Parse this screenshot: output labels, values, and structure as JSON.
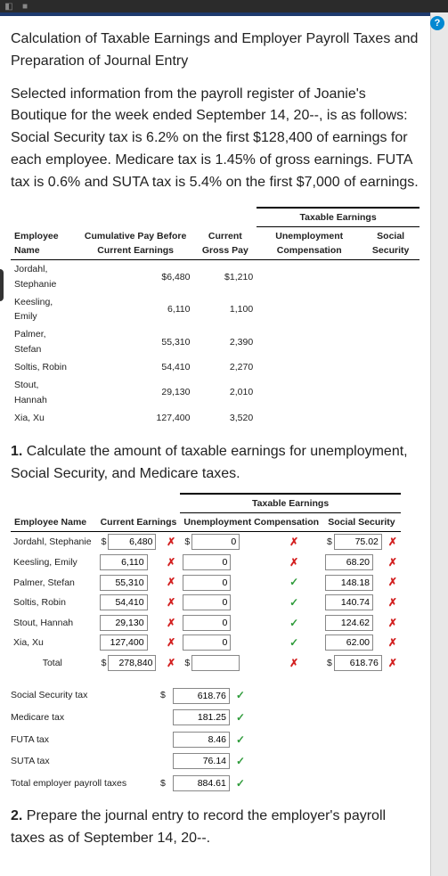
{
  "topbar": {
    "icon1_glyph": "◧",
    "icon2_glyph": "■"
  },
  "help_glyph": "?",
  "title": "Calculation of Taxable Earnings and Employer Payroll Taxes and Preparation of Journal Entry",
  "intro": "Selected information from the payroll register of Joanie's Boutique for the week ended September 14, 20--, is as follows: Social Security tax is 6.2% on the first $128,400 of earnings for each employee. Medicare tax is 1.45% of gross earnings. FUTA tax is 0.6% and SUTA tax is 5.4% on the first $7,000 of earnings.",
  "table1": {
    "group_header": "Taxable Earnings",
    "headers": {
      "name": "Employee Name",
      "cum": "Cumulative Pay Before Current Earnings",
      "gross": "Current Gross Pay",
      "unemp": "Unemployment Compensation",
      "ss": "Social Security"
    },
    "rows": [
      {
        "name": "Jordahl, Stephanie",
        "cum": "$6,480",
        "gross": "$1,210"
      },
      {
        "name": "Keesling, Emily",
        "cum": "6,110",
        "gross": "1,100"
      },
      {
        "name": "Palmer, Stefan",
        "cum": "55,310",
        "gross": "2,390"
      },
      {
        "name": "Soltis, Robin",
        "cum": "54,410",
        "gross": "2,270"
      },
      {
        "name": "Stout, Hannah",
        "cum": "29,130",
        "gross": "2,010"
      },
      {
        "name": "Xia, Xu",
        "cum": "127,400",
        "gross": "3,520"
      }
    ]
  },
  "q1_prompt_num": "1.",
  "q1_prompt": "Calculate the amount of taxable earnings for unemployment, Social Security, and Medicare taxes.",
  "q1_table": {
    "group_header": "Taxable Earnings",
    "headers": {
      "name": "Employee Name",
      "curr": "Current Earnings",
      "unemp": "Unemployment Compensation",
      "ss": "Social Security"
    },
    "rows": [
      {
        "name": "Jordahl, Stephanie",
        "curr": "6,480",
        "curr_mark": "✗",
        "unemp": "0",
        "unemp_mark": "✗",
        "ss": "75.02",
        "ss_mark": "✗",
        "lead_curr": "$",
        "lead_unemp": "$",
        "lead_ss": "$"
      },
      {
        "name": "Keesling, Emily",
        "curr": "6,110",
        "curr_mark": "✗",
        "unemp": "0",
        "unemp_mark": "✗",
        "ss": "68.20",
        "ss_mark": "✗"
      },
      {
        "name": "Palmer, Stefan",
        "curr": "55,310",
        "curr_mark": "✗",
        "unemp": "0",
        "unemp_mark": "✓",
        "ss": "148.18",
        "ss_mark": "✗"
      },
      {
        "name": "Soltis, Robin",
        "curr": "54,410",
        "curr_mark": "✗",
        "unemp": "0",
        "unemp_mark": "✓",
        "ss": "140.74",
        "ss_mark": "✗"
      },
      {
        "name": "Stout, Hannah",
        "curr": "29,130",
        "curr_mark": "✗",
        "unemp": "0",
        "unemp_mark": "✓",
        "ss": "124.62",
        "ss_mark": "✗"
      },
      {
        "name": "Xia, Xu",
        "curr": "127,400",
        "curr_mark": "✗",
        "unemp": "0",
        "unemp_mark": "✓",
        "ss": "62.00",
        "ss_mark": "✗"
      }
    ],
    "total_label": "Total",
    "total": {
      "curr": "278,840",
      "curr_mark": "✗",
      "unemp": "",
      "unemp_mark": "✗",
      "ss": "618.76",
      "ss_mark": "✗",
      "lead_curr": "$",
      "lead_unemp": "$",
      "lead_ss": "$"
    }
  },
  "taxes": {
    "rows": [
      {
        "label": "Social Security tax",
        "value": "618.76",
        "mark": "✓",
        "lead": "$"
      },
      {
        "label": "Medicare tax",
        "value": "181.25",
        "mark": "✓"
      },
      {
        "label": "FUTA tax",
        "value": "8.46",
        "mark": "✓"
      },
      {
        "label": "SUTA tax",
        "value": "76.14",
        "mark": "✓"
      },
      {
        "label": "Total employer payroll taxes",
        "value": "884.61",
        "mark": "✓",
        "lead": "$"
      }
    ]
  },
  "q2_prompt_num": "2.",
  "q2_prompt": "Prepare the journal entry to record the employer's payroll taxes as of September 14, 20--.",
  "colors": {
    "accent_border": "#1e3a6e",
    "help_bg": "#0288d1",
    "ok": "#2e9b3a",
    "bad": "#d32020"
  }
}
